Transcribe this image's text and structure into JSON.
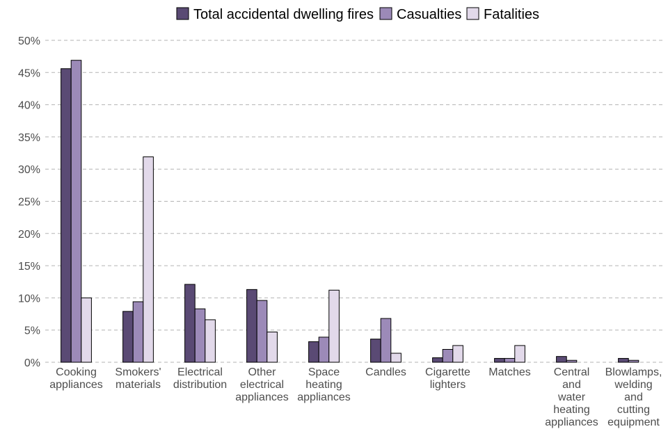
{
  "chart_data": {
    "type": "bar",
    "title": "",
    "xlabel": "",
    "ylabel": "",
    "ylim": [
      0,
      50
    ],
    "yticks": [
      0,
      5,
      10,
      15,
      20,
      25,
      30,
      35,
      40,
      45,
      50
    ],
    "ytick_suffix": "%",
    "grid": "horizontal dashed",
    "legend_position": "top",
    "categories": [
      [
        "Cooking",
        "appliances"
      ],
      [
        "Smokers'",
        "materials"
      ],
      [
        "Electrical",
        "distribution"
      ],
      [
        "Other",
        "electrical",
        "appliances"
      ],
      [
        "Space",
        "heating",
        "appliances"
      ],
      [
        "Candles"
      ],
      [
        "Cigarette",
        "lighters"
      ],
      [
        "Matches"
      ],
      [
        "Central",
        "and",
        "water",
        "heating",
        "appliances"
      ],
      [
        "Blowlamps,",
        "welding",
        "and",
        "cutting",
        "equipment"
      ]
    ],
    "series": [
      {
        "name": "Total accidental dwelling fires",
        "color": "#5a4a74",
        "values": [
          45.6,
          7.9,
          12.1,
          11.3,
          3.2,
          3.6,
          0.7,
          0.6,
          0.9,
          0.6
        ]
      },
      {
        "name": "Casualties",
        "color": "#9c8ab8",
        "values": [
          46.9,
          9.4,
          8.3,
          9.6,
          3.9,
          6.8,
          2.0,
          0.6,
          0.3,
          0.3
        ]
      },
      {
        "name": "Fatalities",
        "color": "#e2d9ea",
        "values": [
          10.0,
          31.9,
          6.6,
          4.7,
          11.2,
          1.4,
          2.6,
          2.6,
          0.0,
          0.0
        ]
      }
    ]
  }
}
